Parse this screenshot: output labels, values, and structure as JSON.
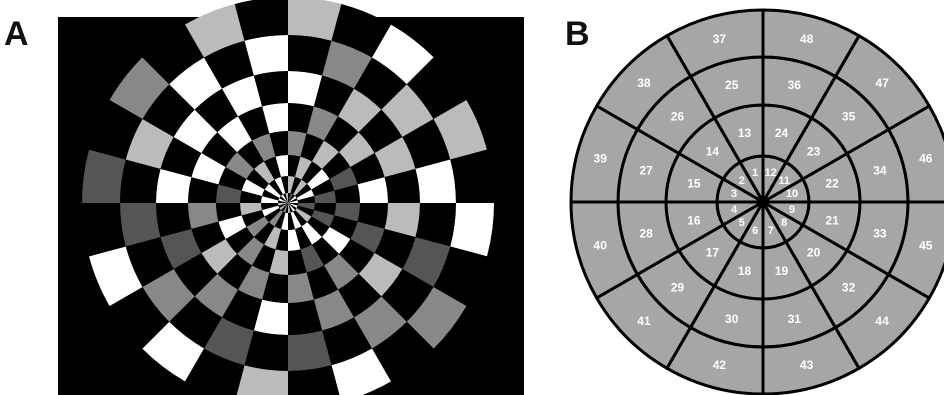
{
  "panels": {
    "a": {
      "label": "A"
    },
    "b": {
      "label": "B"
    }
  },
  "checkerboard": {
    "rings": 8,
    "sectors": 24,
    "colors": {
      "background": "#000000",
      "black": "#000000",
      "white": "#ffffff",
      "light_gray": "#bbbbbb",
      "mid_gray": "#888888",
      "dark_gray": "#555555"
    }
  },
  "segment_map": {
    "colors": {
      "fill": "#a6a6a6",
      "stroke": "#000000",
      "text": "#ffffff"
    },
    "rings": [
      {
        "sectors": 12,
        "labels": [
          "1",
          "2",
          "3",
          "4",
          "5",
          "6",
          "7",
          "8",
          "9",
          "10",
          "11",
          "12"
        ]
      },
      {
        "sectors": 12,
        "labels": [
          "13",
          "14",
          "15",
          "16",
          "17",
          "18",
          "19",
          "20",
          "21",
          "22",
          "23",
          "24"
        ]
      },
      {
        "sectors": 12,
        "labels": [
          "25",
          "26",
          "27",
          "28",
          "29",
          "30",
          "31",
          "32",
          "33",
          "34",
          "35",
          "36"
        ]
      },
      {
        "sectors": 12,
        "labels": [
          "37",
          "38",
          "39",
          "40",
          "41",
          "42",
          "43",
          "44",
          "45",
          "46",
          "47",
          "48"
        ]
      }
    ]
  }
}
